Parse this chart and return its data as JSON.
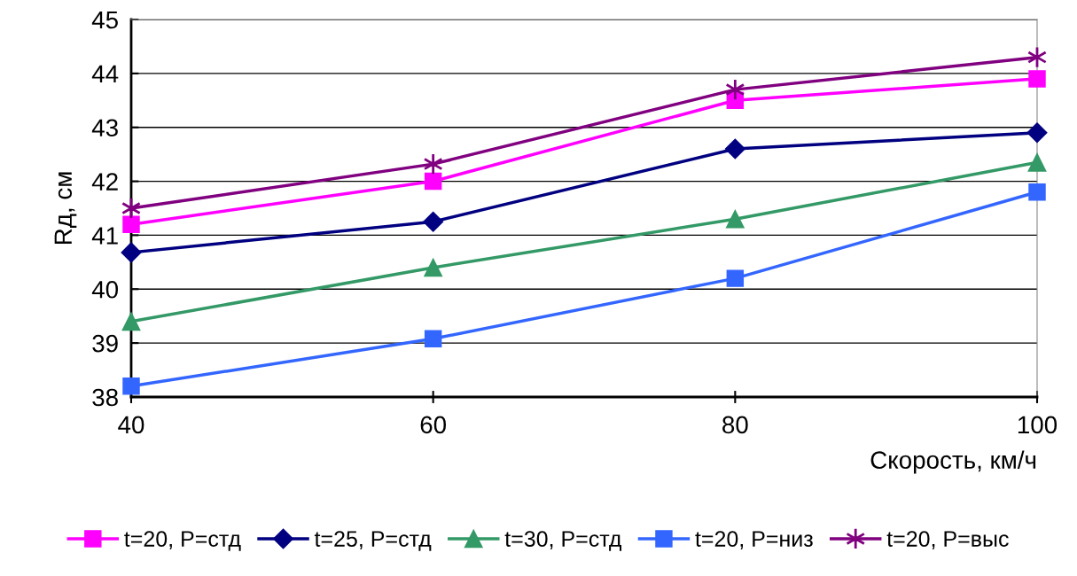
{
  "chart_data": {
    "type": "line",
    "xlabel": "Скорость, км/ч",
    "ylabel": "Rд, см",
    "x": [
      40,
      60,
      80,
      100
    ],
    "xlim": [
      40,
      100
    ],
    "xticks": [
      40,
      60,
      80,
      100
    ],
    "ylim": [
      38,
      45
    ],
    "yticks": [
      38,
      39,
      40,
      41,
      42,
      43,
      44,
      45
    ],
    "grid": "y",
    "legend": "bottom",
    "line_style": "solid",
    "series": [
      {
        "name": "t=20, P=стд",
        "color": "#ff00ff",
        "marker": "square",
        "values": [
          41.2,
          42.0,
          43.5,
          43.9
        ]
      },
      {
        "name": "t=25, P=стд",
        "color": "#000080",
        "marker": "diamond",
        "values": [
          40.68,
          41.25,
          42.6,
          42.9
        ]
      },
      {
        "name": "t=30, P=стд",
        "color": "#339966",
        "marker": "triangle",
        "values": [
          39.4,
          40.4,
          41.3,
          42.35
        ]
      },
      {
        "name": "t=20, P=низ",
        "color": "#3366ff",
        "marker": "square",
        "values": [
          38.2,
          39.08,
          40.2,
          41.8
        ]
      },
      {
        "name": "t=20, P=выс",
        "color": "#800080",
        "marker": "cross",
        "values": [
          41.5,
          42.32,
          43.7,
          44.3
        ]
      }
    ]
  }
}
